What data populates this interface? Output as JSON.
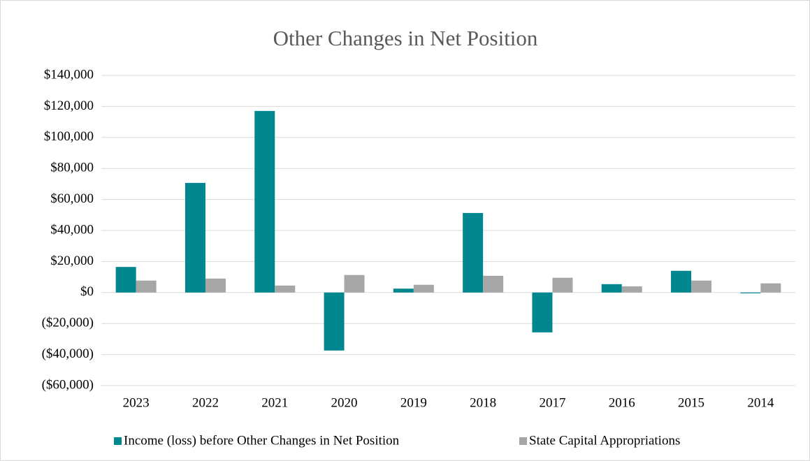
{
  "chart_data": {
    "type": "bar",
    "title": "Other Changes in Net Position",
    "categories": [
      "2023",
      "2022",
      "2021",
      "2020",
      "2019",
      "2018",
      "2017",
      "2016",
      "2015",
      "2014"
    ],
    "series": [
      {
        "name": "Income (loss) before Other Changes in Net Position",
        "color": "#00868f",
        "values": [
          16500,
          70700,
          117100,
          -37400,
          2500,
          51300,
          -25700,
          5400,
          14000,
          -500
        ]
      },
      {
        "name": "State Capital Appropriations",
        "color": "#a6a6a6",
        "values": [
          7700,
          9000,
          4500,
          11300,
          5000,
          10800,
          9500,
          4000,
          7700,
          5900
        ]
      }
    ],
    "ylim": [
      -60000,
      140000
    ],
    "yticks": [
      {
        "value": -60000,
        "label": "($60,000)"
      },
      {
        "value": -40000,
        "label": "($40,000)"
      },
      {
        "value": -20000,
        "label": "($20,000)"
      },
      {
        "value": 0,
        "label": "$0"
      },
      {
        "value": 20000,
        "label": "$20,000"
      },
      {
        "value": 40000,
        "label": "$40,000"
      },
      {
        "value": 60000,
        "label": "$60,000"
      },
      {
        "value": 80000,
        "label": "$80,000"
      },
      {
        "value": 100000,
        "label": "$100,000"
      },
      {
        "value": 120000,
        "label": "$120,000"
      },
      {
        "value": 140000,
        "label": "$140,000"
      }
    ],
    "grid": true,
    "legend": "bottom"
  }
}
